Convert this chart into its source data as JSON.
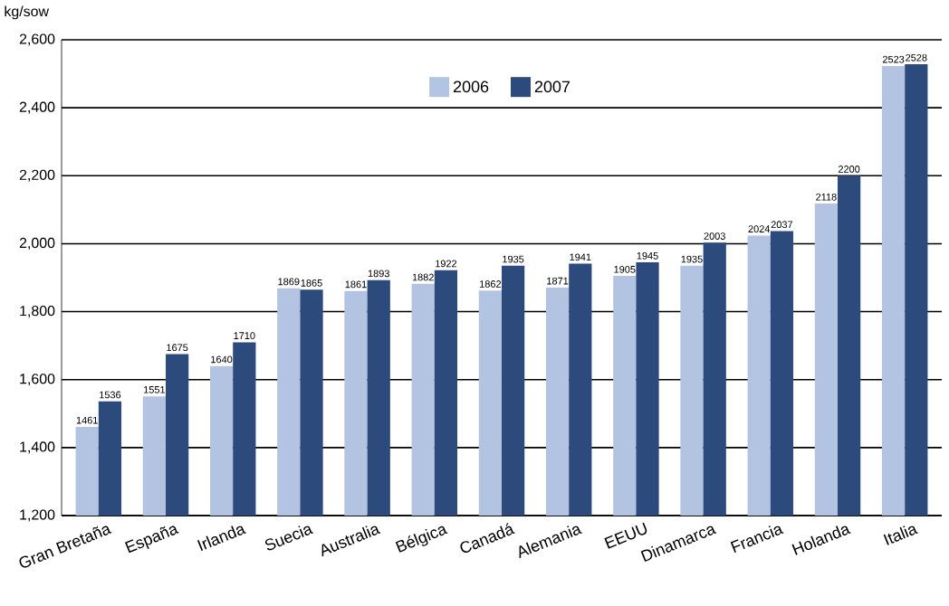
{
  "chart_data": {
    "type": "bar",
    "ylabel": "kg/sow",
    "categories": [
      "Gran Bretaña",
      "España",
      "Irlanda",
      "Suecia",
      "Australia",
      "Bélgica",
      "Canadá",
      "Alemania",
      "EEUU",
      "Dinamarca",
      "Francia",
      "Holanda",
      "Italia"
    ],
    "series": [
      {
        "name": "2006",
        "color": "#b2c4e2",
        "values": [
          1461,
          1551,
          1640,
          1869,
          1861,
          1882,
          1862,
          1871,
          1905,
          1935,
          2024,
          2118,
          2523
        ]
      },
      {
        "name": "2007",
        "color": "#2c4a7b",
        "values": [
          1536,
          1675,
          1710,
          1865,
          1893,
          1922,
          1935,
          1941,
          1945,
          2003,
          2037,
          2200,
          2528
        ]
      }
    ],
    "ylim": [
      1200,
      2600
    ],
    "yticks": [
      {
        "value": 1200,
        "label": "1,200"
      },
      {
        "value": 1400,
        "label": "1,400"
      },
      {
        "value": 1600,
        "label": "1,600"
      },
      {
        "value": 1800,
        "label": "1,800"
      },
      {
        "value": 2000,
        "label": "2,000"
      },
      {
        "value": 2200,
        "label": "2,200"
      },
      {
        "value": 2400,
        "label": "2,400"
      },
      {
        "value": 2600,
        "label": "2,600"
      }
    ],
    "grid": "y",
    "legend": "top",
    "data_labels": true
  }
}
